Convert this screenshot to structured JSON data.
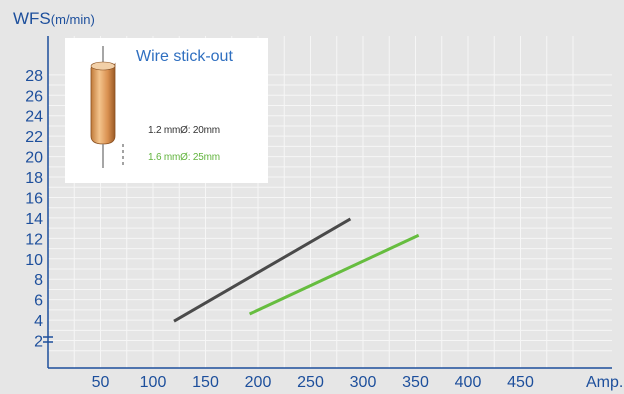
{
  "chart_data": {
    "type": "line",
    "title": "",
    "ylabel": "WFS",
    "ylabel_unit": "(m/min)",
    "xlabel": "Amp.",
    "xlim": [
      0,
      500
    ],
    "ylim": [
      0,
      29
    ],
    "y_axis_break": true,
    "grid": true,
    "yticks": [
      "28",
      "26",
      "24",
      "22",
      "20",
      "18",
      "16",
      "14",
      "12",
      "10",
      "8",
      "6",
      "4",
      "2"
    ],
    "xticks": [
      "50",
      "100",
      "150",
      "200",
      "250",
      "300",
      "350",
      "400",
      "450"
    ],
    "series": [
      {
        "name": "1.2 mmØ: 20mm",
        "color": "#4a4a4a",
        "x": [
          120,
          288
        ],
        "y": [
          3.9,
          13.9
        ]
      },
      {
        "name": "1.6 mmØ: 25mm",
        "color": "#66bd3f",
        "x": [
          192,
          353
        ],
        "y": [
          4.6,
          12.3
        ]
      }
    ],
    "legend_placement": "top-left",
    "inset": {
      "title": "Wire stick-out",
      "icon": "welding-wire-icon"
    }
  },
  "colors": {
    "background": "#e6e6e6",
    "grid": "#f4f4f4",
    "axis": "#1d4f9c",
    "title": "#2f6fc0"
  }
}
